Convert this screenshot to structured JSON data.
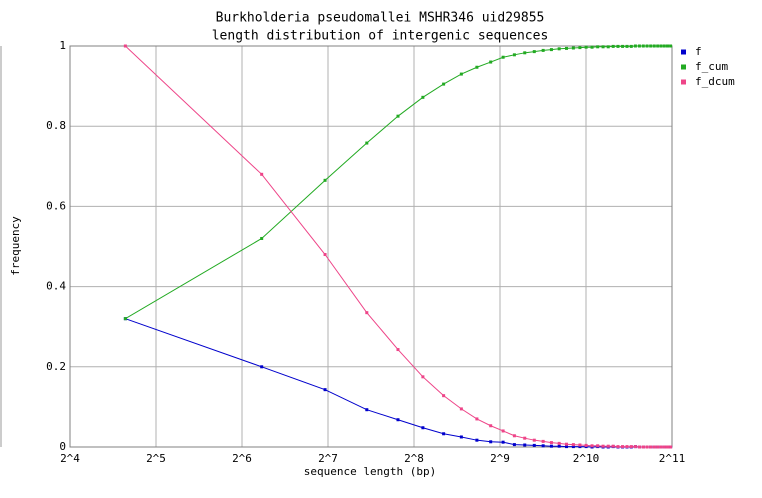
{
  "chart_data": {
    "type": "line",
    "title": "Burkholderia pseudomallei MSHR346 uid29855",
    "subtitle": "length distribution of intergenic sequences",
    "x_label": "sequence length (bp)",
    "y_label": "frequency",
    "log_x": 2,
    "grid": true,
    "legend": "right",
    "x": [
      25,
      75,
      125,
      175,
      225,
      275,
      325,
      375,
      425,
      475,
      525,
      575,
      625,
      675,
      725,
      775,
      825,
      875,
      925,
      975,
      1025,
      1075,
      1125,
      1175,
      1225,
      1275,
      1325,
      1375,
      1425,
      1475,
      1525,
      1575,
      1625,
      1675,
      1725,
      1775,
      1825,
      1875,
      1925,
      1975,
      2025
    ],
    "series": [
      {
        "name": "f",
        "color": "#0000cc",
        "values": [
          0.32,
          0.2,
          0.143,
          0.093,
          0.068,
          0.048,
          0.033,
          0.025,
          0.017,
          0.013,
          0.012,
          0.006,
          0.005,
          0.004,
          0.003,
          0.002,
          0.002,
          0.001,
          0.001,
          0.001,
          0.001,
          0,
          0.001,
          0,
          0,
          0.001,
          0,
          0,
          0,
          0,
          0.001,
          0,
          0,
          0,
          0,
          0,
          0,
          0,
          0,
          0,
          0
        ]
      },
      {
        "name": "f_cum",
        "color": "#22aa22",
        "values": [
          0.32,
          0.52,
          0.665,
          0.758,
          0.825,
          0.872,
          0.905,
          0.93,
          0.947,
          0.96,
          0.972,
          0.978,
          0.983,
          0.986,
          0.989,
          0.991,
          0.993,
          0.994,
          0.995,
          0.996,
          0.997,
          0.997,
          0.998,
          0.998,
          0.998,
          0.999,
          0.999,
          0.999,
          0.999,
          0.999,
          1,
          1,
          1,
          1,
          1,
          1,
          1,
          1,
          1,
          1,
          1
        ]
      },
      {
        "name": "f_dcum",
        "color": "#ee4488",
        "values": [
          1,
          0.68,
          0.48,
          0.335,
          0.243,
          0.175,
          0.128,
          0.095,
          0.07,
          0.053,
          0.04,
          0.028,
          0.022,
          0.017,
          0.014,
          0.011,
          0.009,
          0.007,
          0.006,
          0.005,
          0.004,
          0.003,
          0.003,
          0.002,
          0.002,
          0.002,
          0.001,
          0.001,
          0.001,
          0.001,
          0.001,
          0,
          0,
          0,
          0,
          0,
          0,
          0,
          0,
          0,
          0
        ]
      }
    ],
    "xlim": [
      16,
      2048
    ],
    "xticks": [
      {
        "value": 16,
        "label": "2^4"
      },
      {
        "value": 32,
        "label": "2^5"
      },
      {
        "value": 64,
        "label": "2^6"
      },
      {
        "value": 128,
        "label": "2^7"
      },
      {
        "value": 256,
        "label": "2^8"
      },
      {
        "value": 512,
        "label": "2^9"
      },
      {
        "value": 1024,
        "label": "2^10"
      },
      {
        "value": 2048,
        "label": "2^11"
      }
    ],
    "ylim": [
      0,
      1
    ],
    "yticks": [
      0,
      0.2,
      0.4,
      0.6,
      0.8,
      1
    ]
  }
}
